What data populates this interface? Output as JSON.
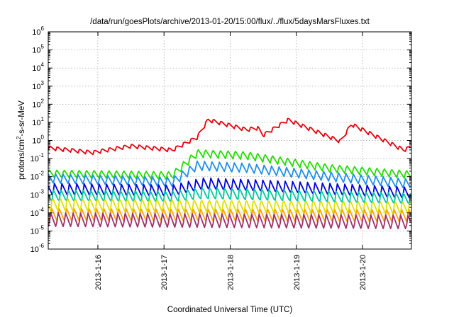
{
  "chart_data": {
    "type": "line",
    "title": "/data/run/goesPlots/archive/2013-01-20/15:00/flux/../flux/5daysMarsFluxes.txt",
    "xlabel": "Coordinated Universal Time (UTC)",
    "ylabel_parts": [
      "protons/cm",
      "2",
      "-s-sr-MeV"
    ],
    "x_ticks": [
      "2013-1-16",
      "2013-1-17",
      "2013-1-18",
      "2013-1-19",
      "2013-1-20"
    ],
    "xlim": [
      "2013-01-15 06:00",
      "2013-01-20 17:45"
    ],
    "y_scale": "log",
    "ylim": [
      1e-06,
      1000000.0
    ],
    "y_tick_exponents": [
      -6,
      -5,
      -4,
      -3,
      -2,
      -1,
      0,
      1,
      2,
      3,
      4,
      5,
      6
    ],
    "y_tick_base": "10",
    "grid": true,
    "series": [
      {
        "color": "#e8000b",
        "sawtooth_amp": 0.12,
        "trend": [
          [
            "2013-01-15 06:00",
            0.4
          ],
          [
            "2013-01-15 22:00",
            0.22
          ],
          [
            "2013-01-16 12:00",
            0.5
          ],
          [
            "2013-01-17 03:00",
            0.3
          ],
          [
            "2013-01-17 12:00",
            1.5
          ],
          [
            "2013-01-17 16:00",
            14
          ],
          [
            "2013-01-18 06:00",
            4
          ],
          [
            "2013-01-18 10:00",
            5
          ],
          [
            "2013-01-18 12:00",
            2
          ],
          [
            "2013-01-18 21:00",
            14
          ],
          [
            "2013-01-19 16:00",
            0.9
          ],
          [
            "2013-01-19 20:00",
            8
          ],
          [
            "2013-01-20 15:00",
            0.3
          ],
          [
            "2013-01-20 17:45",
            0.45
          ]
        ]
      },
      {
        "color": "#22dd00",
        "sawtooth_amp": 0.25,
        "trend": [
          [
            "2013-01-15 06:00",
            0.015
          ],
          [
            "2013-01-16 12:00",
            0.013
          ],
          [
            "2013-01-17 03:00",
            0.012
          ],
          [
            "2013-01-17 12:00",
            0.2
          ],
          [
            "2013-01-18 06:00",
            0.15
          ],
          [
            "2013-01-19 12:00",
            0.03
          ],
          [
            "2013-01-20 17:45",
            0.013
          ]
        ]
      },
      {
        "color": "#1e8ef0",
        "sawtooth_amp": 0.3,
        "trend": [
          [
            "2013-01-15 06:00",
            0.008
          ],
          [
            "2013-01-16 12:00",
            0.006
          ],
          [
            "2013-01-17 03:00",
            0.005
          ],
          [
            "2013-01-17 12:00",
            0.04
          ],
          [
            "2013-01-18 06:00",
            0.03
          ],
          [
            "2013-01-19 12:00",
            0.01
          ],
          [
            "2013-01-20 17:45",
            0.004
          ]
        ]
      },
      {
        "color": "#0000d8",
        "sawtooth_amp": 0.35,
        "trend": [
          [
            "2013-01-15 06:00",
            0.002
          ],
          [
            "2013-01-17 03:00",
            0.0016
          ],
          [
            "2013-01-17 14:00",
            0.004
          ],
          [
            "2013-01-18 12:00",
            0.003
          ],
          [
            "2013-01-20 17:45",
            0.0012
          ]
        ]
      },
      {
        "color": "#00c8a0",
        "sawtooth_amp": 0.35,
        "trend": [
          [
            "2013-01-15 06:00",
            0.0009
          ],
          [
            "2013-01-17 03:00",
            0.0008
          ],
          [
            "2013-01-17 14:00",
            0.0012
          ],
          [
            "2013-01-20 17:45",
            0.0006
          ]
        ]
      },
      {
        "color": "#e0e000",
        "sawtooth_amp": 0.4,
        "trend": [
          [
            "2013-01-15 06:00",
            0.0003
          ],
          [
            "2013-01-17 12:00",
            0.00025
          ],
          [
            "2013-01-20 17:45",
            0.0002
          ]
        ]
      },
      {
        "color": "#ffa500",
        "sawtooth_amp": 0.4,
        "trend": [
          [
            "2013-01-15 06:00",
            8e-05
          ],
          [
            "2013-01-20 17:45",
            7e-05
          ]
        ]
      },
      {
        "color": "#a0306e",
        "sawtooth_amp": 0.45,
        "trend": [
          [
            "2013-01-15 06:00",
            4e-05
          ],
          [
            "2013-01-20 17:45",
            3e-05
          ]
        ]
      }
    ]
  }
}
